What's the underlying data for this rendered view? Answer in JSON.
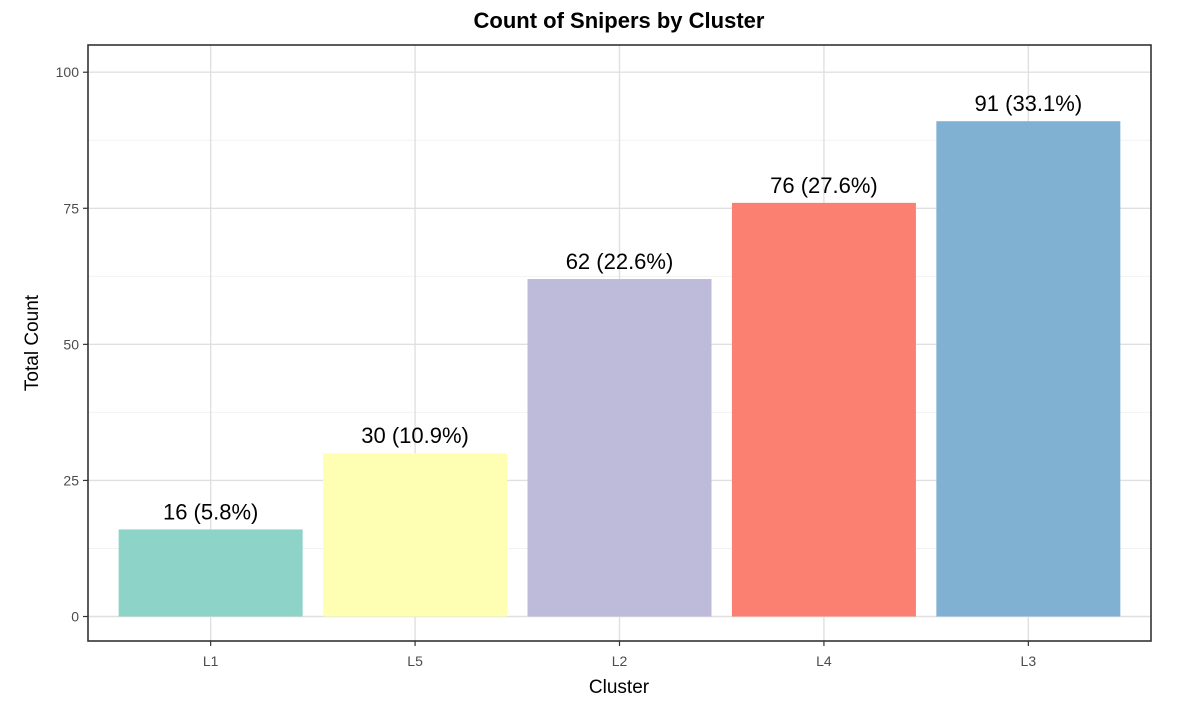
{
  "chart_data": {
    "type": "bar",
    "title": "Count of Snipers by Cluster",
    "xlabel": "Cluster",
    "ylabel": "Total Count",
    "categories": [
      "L1",
      "L5",
      "L2",
      "L4",
      "L3"
    ],
    "values": [
      16,
      30,
      62,
      76,
      91
    ],
    "data_labels": [
      "16 (5.8%)",
      "30 (10.9%)",
      "62 (22.6%)",
      "76 (27.6%)",
      "91 (33.1%)"
    ],
    "colors": [
      "#8DD3C7",
      "#FFFFB3",
      "#BEBADA",
      "#FB8072",
      "#80B1D3"
    ],
    "yticks": [
      0,
      25,
      50,
      75,
      100
    ],
    "ytick_labels": [
      "0",
      "25",
      "50",
      "75",
      "100"
    ],
    "ylim": [
      -4.5,
      105
    ],
    "grid": true,
    "legend": "none"
  }
}
